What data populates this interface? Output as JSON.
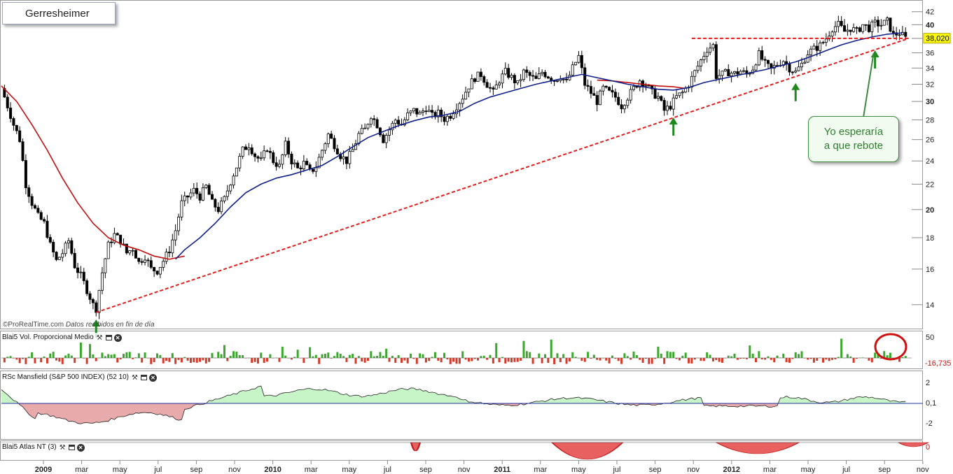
{
  "title": "Gerresheimer",
  "credit": "ProRealTime.com",
  "credit_note": "Datos recibidos en fin de día",
  "callout": {
    "line1": "Yo esperaría",
    "line2": "a que rebote"
  },
  "last_price_label": "38,020",
  "colors": {
    "up": "#ffffff",
    "down": "#000000",
    "ma_red": "#c01010",
    "ma_blue": "#10208a",
    "trend": "#e02020",
    "arrow": "#1e8a1e",
    "vol_pos": "#3aa82a",
    "vol_neg": "#d83a2a",
    "rsc_pos": "#c8f5c8",
    "rsc_neg": "#e8aaaa"
  },
  "panels": [
    {
      "id": "volume",
      "label": "Blai5 Vol. Proporcional Medio",
      "ticks": [
        "50",
        "-16,735"
      ]
    },
    {
      "id": "mansfield",
      "label": "RSc Mansfield (S&P 500 INDEX) (52 10)",
      "ticks": [
        "2",
        "0,1",
        "-2"
      ]
    },
    {
      "id": "atlas",
      "label": "Blai5 Atlas NT (3)",
      "ticks": [
        "0"
      ]
    }
  ],
  "x_axis_labels": [
    {
      "label": "2009",
      "bold": true
    },
    {
      "label": "mar"
    },
    {
      "label": "may"
    },
    {
      "label": "jul"
    },
    {
      "label": "sep"
    },
    {
      "label": "nov"
    },
    {
      "label": "2010",
      "bold": true
    },
    {
      "label": "mar"
    },
    {
      "label": "may"
    },
    {
      "label": "jul"
    },
    {
      "label": "sep"
    },
    {
      "label": "nov"
    },
    {
      "label": "2011",
      "bold": true
    },
    {
      "label": "mar"
    },
    {
      "label": "may"
    },
    {
      "label": "jul"
    },
    {
      "label": "sep"
    },
    {
      "label": "nov"
    },
    {
      "label": "2012",
      "bold": true
    },
    {
      "label": "mar"
    },
    {
      "label": "may"
    },
    {
      "label": "jul"
    },
    {
      "label": "sep"
    },
    {
      "label": "nov"
    }
  ],
  "chart_data": {
    "type": "candlestick",
    "instrument": "Gerresheimer",
    "interval": "weekly",
    "y_axis": {
      "ticks": [
        {
          "value": 14,
          "label": "14"
        },
        {
          "value": 16,
          "label": "16"
        },
        {
          "value": 18,
          "label": "18"
        },
        {
          "value": 20,
          "label": "20"
        },
        {
          "value": 22,
          "label": "22"
        },
        {
          "value": 24,
          "label": "24"
        },
        {
          "value": 26,
          "label": "26"
        },
        {
          "value": 28,
          "label": "28"
        },
        {
          "value": 30,
          "label": "30"
        },
        {
          "value": 32,
          "label": "32"
        },
        {
          "value": 34,
          "label": "34"
        },
        {
          "value": 36,
          "label": "36"
        },
        {
          "value": 38,
          "label": "38"
        },
        {
          "value": 40,
          "label": "40"
        },
        {
          "value": 42,
          "label": "42"
        }
      ],
      "bold_ticks": [
        "20",
        "30",
        "40"
      ],
      "scale": "log"
    },
    "close_path": [
      [
        0,
        31.5
      ],
      [
        2,
        29.5
      ],
      [
        4,
        27.5
      ],
      [
        6,
        26
      ],
      [
        8,
        22
      ],
      [
        10,
        20.5
      ],
      [
        12,
        19.5
      ],
      [
        14,
        19
      ],
      [
        16,
        17.5
      ],
      [
        18,
        16.5
      ],
      [
        20,
        17
      ],
      [
        22,
        17.8
      ],
      [
        24,
        16.2
      ],
      [
        26,
        15.6
      ],
      [
        28,
        14.8
      ],
      [
        30,
        14.0
      ],
      [
        31,
        13.8
      ],
      [
        33,
        15.8
      ],
      [
        35,
        17.5
      ],
      [
        37,
        18.2
      ],
      [
        39,
        17.8
      ],
      [
        41,
        17.0
      ],
      [
        43,
        17.3
      ],
      [
        45,
        16.4
      ],
      [
        47,
        16.8
      ],
      [
        49,
        16.0
      ],
      [
        51,
        15.9
      ],
      [
        53,
        16.5
      ],
      [
        55,
        17.2
      ],
      [
        57,
        18.5
      ],
      [
        59,
        20.5
      ],
      [
        61,
        21.0
      ],
      [
        63,
        21.5
      ],
      [
        65,
        21.0
      ],
      [
        67,
        21.8
      ],
      [
        69,
        20.5
      ],
      [
        71,
        20.0
      ],
      [
        73,
        20.8
      ],
      [
        75,
        22.2
      ],
      [
        77,
        23.5
      ],
      [
        79,
        25.0
      ],
      [
        81,
        25.5
      ],
      [
        83,
        24.5
      ],
      [
        85,
        24.0
      ],
      [
        87,
        25.2
      ],
      [
        89,
        24.0
      ],
      [
        91,
        23.5
      ],
      [
        93,
        25.5
      ],
      [
        95,
        24.0
      ],
      [
        97,
        23.3
      ],
      [
        99,
        23.8
      ],
      [
        101,
        23.0
      ],
      [
        103,
        23.5
      ],
      [
        105,
        25.0
      ],
      [
        107,
        26.5
      ],
      [
        109,
        25.5
      ],
      [
        111,
        24.5
      ],
      [
        113,
        24.0
      ],
      [
        115,
        25.0
      ],
      [
        117,
        26.5
      ],
      [
        119,
        27.0
      ],
      [
        121,
        28.5
      ],
      [
        123,
        27.5
      ],
      [
        125,
        26.0
      ],
      [
        127,
        27.0
      ],
      [
        129,
        28.0
      ],
      [
        131,
        27.5
      ],
      [
        133,
        28.5
      ],
      [
        135,
        29.0
      ],
      [
        137,
        28.6
      ],
      [
        139,
        29.3
      ],
      [
        141,
        28.4
      ],
      [
        143,
        28.7
      ],
      [
        145,
        28.1
      ],
      [
        147,
        28.5
      ],
      [
        149,
        29.5
      ],
      [
        151,
        30.5
      ],
      [
        153,
        31.8
      ],
      [
        155,
        32.8
      ],
      [
        157,
        33.2
      ],
      [
        159,
        32.0
      ],
      [
        161,
        31.0
      ],
      [
        163,
        32.5
      ],
      [
        165,
        33.5
      ],
      [
        167,
        32.8
      ],
      [
        169,
        32.0
      ],
      [
        171,
        33.5
      ],
      [
        173,
        33.0
      ],
      [
        175,
        32.5
      ],
      [
        177,
        33.5
      ],
      [
        179,
        33.0
      ],
      [
        181,
        32.5
      ],
      [
        183,
        33.0
      ],
      [
        185,
        32.2
      ],
      [
        187,
        34.0
      ],
      [
        189,
        35.5
      ],
      [
        191,
        32.0
      ],
      [
        193,
        31.0
      ],
      [
        195,
        30.0
      ],
      [
        197,
        31.5
      ],
      [
        199,
        31.0
      ],
      [
        201,
        30.5
      ],
      [
        203,
        29.5
      ],
      [
        205,
        30.5
      ],
      [
        207,
        31.5
      ],
      [
        209,
        32.5
      ],
      [
        211,
        32.0
      ],
      [
        213,
        31.0
      ],
      [
        215,
        30.5
      ],
      [
        217,
        29.0
      ],
      [
        219,
        29.5
      ],
      [
        221,
        30.5
      ],
      [
        223,
        31.0
      ],
      [
        225,
        32.0
      ],
      [
        227,
        33.5
      ],
      [
        229,
        35.0
      ],
      [
        231,
        36.5
      ],
      [
        233,
        37.0
      ],
      [
        234,
        33.0
      ],
      [
        236,
        33.2
      ],
      [
        238,
        33.5
      ],
      [
        240,
        33.3
      ],
      [
        242,
        33.6
      ],
      [
        244,
        33.2
      ],
      [
        246,
        34.0
      ],
      [
        248,
        35.8
      ],
      [
        250,
        34.5
      ],
      [
        252,
        33.8
      ],
      [
        254,
        34.5
      ],
      [
        256,
        35.0
      ],
      [
        258,
        34.0
      ],
      [
        260,
        33.5
      ],
      [
        262,
        34.5
      ],
      [
        264,
        36.0
      ],
      [
        266,
        36.5
      ],
      [
        268,
        37.0
      ],
      [
        270,
        38.0
      ],
      [
        272,
        39.5
      ],
      [
        274,
        40.0
      ],
      [
        276,
        39.0
      ],
      [
        278,
        39.5
      ],
      [
        280,
        39.0
      ],
      [
        282,
        40.0
      ],
      [
        284,
        39.5
      ],
      [
        286,
        40.2
      ],
      [
        288,
        40.0
      ],
      [
        290,
        40.5
      ],
      [
        292,
        38.5
      ],
      [
        294,
        38.8
      ],
      [
        296,
        38.0
      ]
    ],
    "ma_red_path": [
      [
        0,
        31.8
      ],
      [
        5,
        30.0
      ],
      [
        10,
        27.5
      ],
      [
        15,
        25.0
      ],
      [
        20,
        22.5
      ],
      [
        25,
        20.5
      ],
      [
        30,
        19.0
      ],
      [
        35,
        18.0
      ],
      [
        40,
        17.5
      ],
      [
        45,
        17.2
      ],
      [
        50,
        16.8
      ],
      [
        55,
        16.6
      ],
      [
        60,
        16.8
      ]
    ],
    "ma_red_path_2": [
      [
        195,
        32.5
      ],
      [
        200,
        32.4
      ],
      [
        205,
        32.2
      ],
      [
        210,
        32.0
      ],
      [
        215,
        31.8
      ],
      [
        220,
        31.7
      ],
      [
        224,
        31.5
      ]
    ],
    "ma_blue_path": [
      [
        57,
        16.6
      ],
      [
        60,
        17.2
      ],
      [
        65,
        18.0
      ],
      [
        70,
        19.0
      ],
      [
        75,
        20.2
      ],
      [
        80,
        21.3
      ],
      [
        85,
        22.0
      ],
      [
        90,
        22.5
      ],
      [
        95,
        22.8
      ],
      [
        100,
        23.2
      ],
      [
        105,
        23.6
      ],
      [
        110,
        24.4
      ],
      [
        115,
        25.3
      ],
      [
        120,
        26.2
      ],
      [
        125,
        26.8
      ],
      [
        130,
        27.4
      ],
      [
        135,
        27.9
      ],
      [
        140,
        28.3
      ],
      [
        145,
        28.5
      ],
      [
        150,
        28.9
      ],
      [
        155,
        29.8
      ],
      [
        160,
        30.5
      ],
      [
        165,
        31.0
      ],
      [
        170,
        31.5
      ],
      [
        175,
        32.0
      ],
      [
        180,
        32.4
      ],
      [
        185,
        32.8
      ],
      [
        190,
        33.2
      ],
      [
        195,
        32.8
      ],
      [
        200,
        32.4
      ],
      [
        205,
        32.0
      ],
      [
        210,
        31.7
      ],
      [
        215,
        31.4
      ],
      [
        220,
        31.3
      ],
      [
        225,
        31.6
      ],
      [
        230,
        32.2
      ],
      [
        235,
        32.6
      ],
      [
        240,
        33.0
      ],
      [
        245,
        33.4
      ],
      [
        250,
        33.8
      ],
      [
        255,
        34.3
      ],
      [
        260,
        34.8
      ],
      [
        265,
        35.5
      ],
      [
        270,
        36.3
      ],
      [
        275,
        37.1
      ],
      [
        280,
        37.7
      ],
      [
        285,
        38.2
      ],
      [
        290,
        38.6
      ],
      [
        295,
        38.8
      ]
    ],
    "trendline": {
      "from": [
        31,
        13.6
      ],
      "to": [
        297,
        38.0
      ]
    },
    "resistance": {
      "from": [
        226,
        38.0
      ],
      "to": [
        297,
        38.0
      ]
    },
    "arrows_at": [
      {
        "x": 31,
        "price": 13.6
      },
      {
        "x": 220,
        "price": 29.0
      },
      {
        "x": 260,
        "price": 33.0
      },
      {
        "x": 286,
        "price": 37.3
      }
    ],
    "last_price": 38.02,
    "x_range": [
      0,
      298
    ],
    "ylim": [
      12.8,
      43.2
    ]
  }
}
